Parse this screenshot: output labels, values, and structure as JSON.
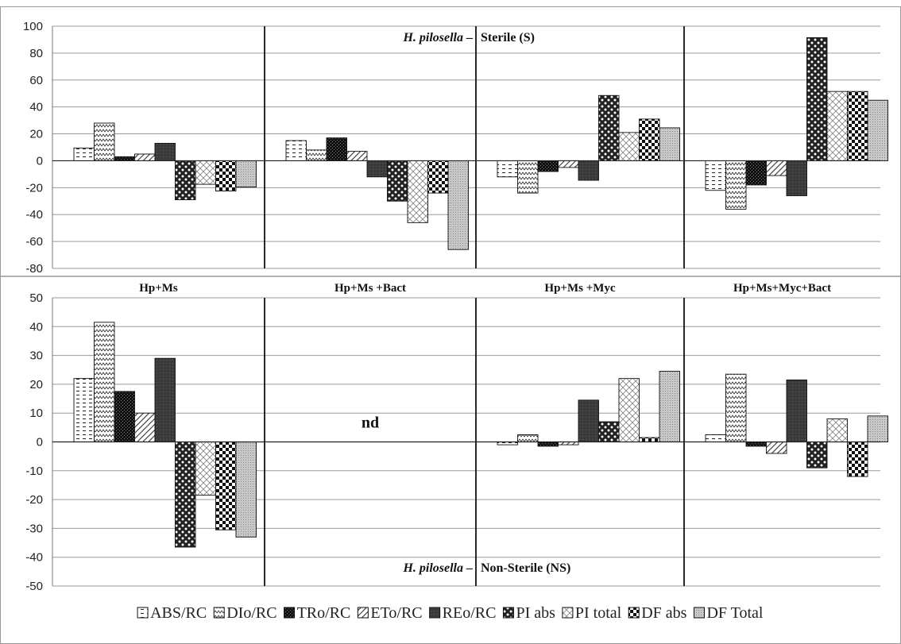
{
  "chart_data": [
    {
      "type": "bar",
      "panel": "top",
      "title": "H. pilosella – Sterile (S)",
      "title_prefix": "H. pilosella –",
      "title_suffix": "Sterile (S)",
      "ylim": [
        -80,
        100
      ],
      "yticks": [
        100,
        80,
        60,
        40,
        20,
        0,
        -20,
        -40,
        -60,
        -80
      ],
      "grid": true,
      "categories": [
        "Hp+Ms",
        "Hp+Ms +Bact",
        "Hp+Ms +Myc",
        "Hp+Ms+Myc+Bact"
      ],
      "series": [
        {
          "name": "ABS/RC",
          "values": [
            9.5,
            15,
            -12,
            -22
          ]
        },
        {
          "name": "DIo/RC",
          "values": [
            28,
            8,
            -24,
            -36
          ]
        },
        {
          "name": "TRo/RC",
          "values": [
            3,
            17,
            -8,
            -18
          ]
        },
        {
          "name": "ETo/RC",
          "values": [
            5,
            7,
            -5,
            -11
          ]
        },
        {
          "name": "REo/RC",
          "values": [
            13,
            -12,
            -14.5,
            -26
          ]
        },
        {
          "name": "PI abs",
          "values": [
            -29,
            -30,
            48.5,
            91.5
          ]
        },
        {
          "name": "PI total",
          "values": [
            -17.5,
            -46,
            21,
            51.5
          ]
        },
        {
          "name": "DF abs",
          "values": [
            -22.5,
            -24,
            31,
            51.5
          ]
        },
        {
          "name": "DF Total",
          "values": [
            -19.5,
            -66,
            24.5,
            45
          ]
        }
      ]
    },
    {
      "type": "bar",
      "panel": "bottom",
      "title": "H. pilosella – Non-Sterile (NS)",
      "title_prefix": "H. pilosella –",
      "title_suffix": "Non-Sterile (NS)",
      "ylim": [
        -50,
        50
      ],
      "yticks": [
        50,
        40,
        30,
        20,
        10,
        0,
        -10,
        -20,
        -30,
        -40,
        -50
      ],
      "grid": true,
      "categories": [
        "Hp+Ms",
        "Hp+Ms +Bact",
        "Hp+Ms +Myc",
        "Hp+Ms+Myc+Bact"
      ],
      "annotations": [
        {
          "group": 1,
          "text": "nd"
        }
      ],
      "series": [
        {
          "name": "ABS/RC",
          "values": [
            22,
            null,
            -1,
            2.5
          ]
        },
        {
          "name": "DIo/RC",
          "values": [
            41.5,
            null,
            2.5,
            23.5
          ]
        },
        {
          "name": "TRo/RC",
          "values": [
            17.5,
            null,
            -1.5,
            -1.5
          ]
        },
        {
          "name": "ETo/RC",
          "values": [
            10,
            null,
            -1,
            -4
          ]
        },
        {
          "name": "REo/RC",
          "values": [
            29,
            null,
            14.5,
            21.5
          ]
        },
        {
          "name": "PI abs",
          "values": [
            -36.5,
            null,
            7,
            -9
          ]
        },
        {
          "name": "PI total",
          "values": [
            -18.5,
            null,
            22,
            8
          ]
        },
        {
          "name": "DF abs",
          "values": [
            -30.5,
            null,
            1.5,
            -12
          ]
        },
        {
          "name": "DF Total",
          "values": [
            -33,
            null,
            24.5,
            9
          ]
        }
      ]
    }
  ],
  "legend": {
    "position": "bottom",
    "labels": [
      "ABS/RC",
      "DIo/RC",
      "TRo/RC",
      "ETo/RC",
      "REo/RC",
      "PI abs",
      "PI total",
      "DF abs",
      "DF Total"
    ]
  }
}
